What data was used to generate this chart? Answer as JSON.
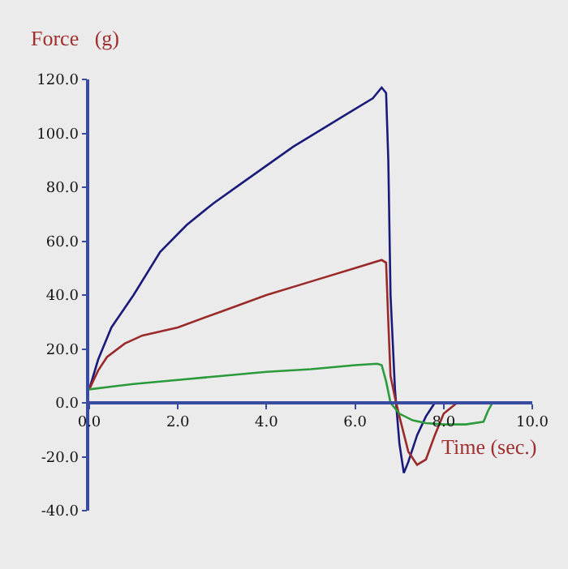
{
  "chart_data": {
    "type": "line",
    "xlabel": "Time (sec.)",
    "ylabel": "Force   (g)",
    "xlim": [
      0,
      10
    ],
    "ylim": [
      -40,
      120
    ],
    "xticks": [
      {
        "value": 0,
        "label": "0.0"
      },
      {
        "value": 2,
        "label": "2.0"
      },
      {
        "value": 4,
        "label": "4.0"
      },
      {
        "value": 6,
        "label": "6.0"
      },
      {
        "value": 8,
        "label": "8.0"
      },
      {
        "value": 10,
        "label": "10.0"
      }
    ],
    "yticks": [
      {
        "value": -40,
        "label": "-40.0"
      },
      {
        "value": -20,
        "label": "-20.0"
      },
      {
        "value": 0,
        "label": "0.0"
      },
      {
        "value": 20,
        "label": "20.0"
      },
      {
        "value": 40,
        "label": "40.0"
      },
      {
        "value": 60,
        "label": "60.0"
      },
      {
        "value": 80,
        "label": "80.0"
      },
      {
        "value": 100,
        "label": "100.0"
      },
      {
        "value": 120,
        "label": "120.0"
      }
    ],
    "grid": false,
    "marker": "none",
    "line_style": "solid",
    "series": [
      {
        "color": "#1a1a7a",
        "x": [
          0,
          0.2,
          0.5,
          1.0,
          1.6,
          2.2,
          2.8,
          3.4,
          4.0,
          4.6,
          5.2,
          5.8,
          6.4,
          6.6,
          6.7,
          6.75,
          6.8,
          6.9,
          7.0,
          7.1,
          7.2,
          7.4,
          7.6,
          7.8
        ],
        "values": [
          5,
          16,
          28,
          40,
          56,
          66,
          74,
          81,
          88,
          95,
          101,
          107,
          113,
          117,
          115,
          90,
          40,
          5,
          -15,
          -26,
          -22,
          -12,
          -5,
          0
        ]
      },
      {
        "color": "#9a2a2a",
        "x": [
          0,
          0.2,
          0.4,
          0.8,
          1.2,
          2.0,
          3.0,
          4.0,
          5.0,
          6.0,
          6.6,
          6.7,
          6.75,
          6.8,
          6.9,
          7.0,
          7.2,
          7.4,
          7.6,
          7.8,
          8.0,
          8.3
        ],
        "values": [
          5,
          12,
          17,
          22,
          25,
          28,
          34,
          40,
          45,
          50,
          53,
          52,
          30,
          10,
          2,
          -5,
          -18,
          -23,
          -21,
          -12,
          -4,
          0
        ]
      },
      {
        "color": "#2a9a3a",
        "x": [
          0,
          0.5,
          1.0,
          2.0,
          3.0,
          4.0,
          5.0,
          6.0,
          6.5,
          6.6,
          6.7,
          6.8,
          7.0,
          7.3,
          7.6,
          8.0,
          8.5,
          8.9,
          9.0,
          9.1,
          10.0
        ],
        "values": [
          5,
          6,
          7,
          8.5,
          10,
          11.5,
          12.5,
          14,
          14.5,
          14,
          8,
          0,
          -4,
          -6.5,
          -7.5,
          -8,
          -8,
          -7,
          -3,
          0,
          0
        ]
      }
    ]
  }
}
